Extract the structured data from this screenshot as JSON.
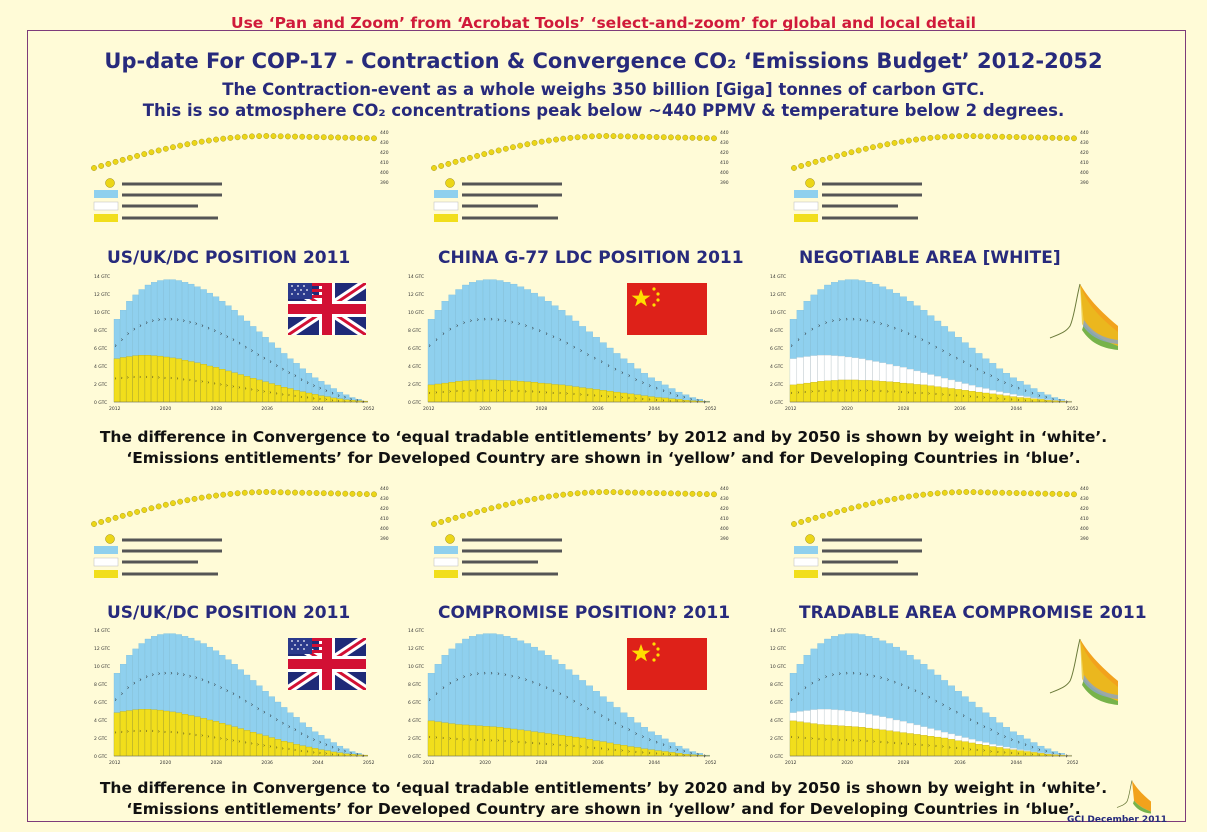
{
  "header": {
    "hint": "Use ‘Pan and Zoom’ from ‘Acrobat Tools’ ‘select-and-zoom’ for global and local detail",
    "title": "Up-date For COP-17 - Contraction & Convergence CO₂ ‘Emissions Budget’ 2012-2052",
    "subtitle_1": "The Contraction-event as a whole weighs 350 billion [Giga] tonnes of carbon GTC.",
    "subtitle_2": "This is so atmosphere CO₂ concentrations peak below ~440 PPMV & temperature below 2 degrees."
  },
  "captions": {
    "row1_line1": "The difference in Convergence to ‘equal tradable entitlements’ by 2012 and by 2050 is shown by weight in ‘white’.",
    "row1_line2": "‘Emissions entitlements’ for Developed Country are shown in ‘yellow’ and for Developing Countries in ‘blue’.",
    "row2_line1": "The difference in Convergence to ‘equal tradable entitlements’ by 2020 and by 2050 is shown by weight in ‘white’.",
    "row2_line2": "‘Emissions entitlements’ for Developed Country are shown in ‘yellow’ and for Developing Countries in ‘blue’."
  },
  "credit": "GCI December 2011",
  "colors": {
    "background": "#fffbd7",
    "blue": "#8fd0ee",
    "yellow": "#f1de1c",
    "white": "#ffffff",
    "title_navy": "#272a7c",
    "hint_red": "#d01a3a",
    "dot_yellow": "#ecd617"
  },
  "concentration_axis_ticks": [
    "440",
    "430",
    "420",
    "410",
    "400",
    "390"
  ],
  "icons": {
    "flag_1": "us-uk-flag-icon",
    "flag_2": "china-flag-icon",
    "inset": "contraction-convergence-graph-icon"
  },
  "chart_data": [
    {
      "type": "bar",
      "title": "US/UK/DC POSITION 2011",
      "x_ticks": [
        "2012",
        "2020",
        "2028",
        "2036",
        "2044",
        "2052"
      ],
      "y_ticks": [
        "14 GTC",
        "12 GTC",
        "10 GTC",
        "8 GTC",
        "6 GTC",
        "4 GTC",
        "2 GTC",
        "0 GTC"
      ],
      "ylim": [
        0,
        14
      ],
      "series": [
        {
          "values": [
            4.8,
            4.95,
            5.05,
            5.15,
            5.2,
            5.2,
            5.15,
            5.1,
            5.0,
            4.9,
            4.8,
            4.65,
            4.5,
            4.35,
            4.2,
            4.0,
            3.85,
            3.65,
            3.45,
            3.25,
            3.05,
            2.85,
            2.65,
            2.45,
            2.25,
            2.05,
            1.85,
            1.65,
            1.5,
            1.3,
            1.15,
            1.0,
            0.85,
            0.7,
            0.6,
            0.45,
            0.35,
            0.25,
            0.2,
            0.15,
            0.1
          ]
        },
        {
          "values": [
            9.2,
            10.2,
            11.2,
            11.9,
            12.5,
            13.0,
            13.3,
            13.5,
            13.6,
            13.6,
            13.5,
            13.3,
            13.1,
            12.8,
            12.5,
            12.1,
            11.7,
            11.2,
            10.7,
            10.2,
            9.6,
            9.0,
            8.4,
            7.8,
            7.2,
            6.6,
            6.0,
            5.4,
            4.8,
            4.3,
            3.7,
            3.2,
            2.7,
            2.3,
            1.9,
            1.5,
            1.1,
            0.8,
            0.5,
            0.3,
            0.1
          ]
        }
      ]
    },
    {
      "type": "bar",
      "title": "CHINA G-77 LDC POSITION 2011",
      "x_ticks": [
        "2012",
        "2020",
        "2028",
        "2036",
        "2044",
        "2052"
      ],
      "y_ticks": [
        "14 GTC",
        "12 GTC",
        "10 GTC",
        "8 GTC",
        "6 GTC",
        "4 GTC",
        "2 GTC",
        "0 GTC"
      ],
      "ylim": [
        0,
        14
      ],
      "series": [
        {
          "values": [
            1.9,
            2.0,
            2.1,
            2.2,
            2.3,
            2.35,
            2.4,
            2.45,
            2.45,
            2.45,
            2.4,
            2.4,
            2.35,
            2.3,
            2.25,
            2.2,
            2.1,
            2.05,
            1.95,
            1.9,
            1.8,
            1.7,
            1.6,
            1.5,
            1.4,
            1.3,
            1.2,
            1.1,
            1.0,
            0.9,
            0.8,
            0.7,
            0.6,
            0.5,
            0.45,
            0.35,
            0.3,
            0.2,
            0.15,
            0.1,
            0.05
          ]
        },
        {
          "values": [
            9.2,
            10.2,
            11.2,
            11.9,
            12.5,
            13.0,
            13.3,
            13.5,
            13.6,
            13.6,
            13.5,
            13.3,
            13.1,
            12.8,
            12.5,
            12.1,
            11.7,
            11.2,
            10.7,
            10.2,
            9.6,
            9.0,
            8.4,
            7.8,
            7.2,
            6.6,
            6.0,
            5.4,
            4.8,
            4.3,
            3.7,
            3.2,
            2.7,
            2.3,
            1.9,
            1.5,
            1.1,
            0.8,
            0.5,
            0.3,
            0.1
          ]
        }
      ]
    },
    {
      "type": "bar",
      "title": "NEGOTIABLE AREA [WHITE]",
      "x_ticks": [
        "2012",
        "2020",
        "2028",
        "2036",
        "2044",
        "2052"
      ],
      "y_ticks": [
        "14 GTC",
        "12 GTC",
        "10 GTC",
        "8 GTC",
        "6 GTC",
        "4 GTC",
        "2 GTC",
        "0 GTC"
      ],
      "ylim": [
        0,
        14
      ],
      "series": [
        {
          "values": [
            1.9,
            2.0,
            2.1,
            2.2,
            2.3,
            2.35,
            2.4,
            2.45,
            2.45,
            2.45,
            2.4,
            2.4,
            2.35,
            2.3,
            2.25,
            2.2,
            2.1,
            2.05,
            1.95,
            1.9,
            1.8,
            1.7,
            1.6,
            1.5,
            1.4,
            1.3,
            1.2,
            1.1,
            1.0,
            0.9,
            0.8,
            0.7,
            0.6,
            0.5,
            0.45,
            0.35,
            0.3,
            0.2,
            0.15,
            0.1,
            0.05
          ]
        },
        {
          "values": [
            4.8,
            4.95,
            5.05,
            5.15,
            5.2,
            5.2,
            5.15,
            5.1,
            5.0,
            4.9,
            4.8,
            4.65,
            4.5,
            4.35,
            4.2,
            4.0,
            3.85,
            3.65,
            3.45,
            3.25,
            3.05,
            2.85,
            2.65,
            2.45,
            2.25,
            2.05,
            1.85,
            1.65,
            1.5,
            1.3,
            1.15,
            1.0,
            0.85,
            0.7,
            0.6,
            0.45,
            0.35,
            0.25,
            0.2,
            0.15,
            0.1
          ]
        },
        {
          "values": [
            9.2,
            10.2,
            11.2,
            11.9,
            12.5,
            13.0,
            13.3,
            13.5,
            13.6,
            13.6,
            13.5,
            13.3,
            13.1,
            12.8,
            12.5,
            12.1,
            11.7,
            11.2,
            10.7,
            10.2,
            9.6,
            9.0,
            8.4,
            7.8,
            7.2,
            6.6,
            6.0,
            5.4,
            4.8,
            4.3,
            3.7,
            3.2,
            2.7,
            2.3,
            1.9,
            1.5,
            1.1,
            0.8,
            0.5,
            0.3,
            0.1
          ]
        }
      ]
    },
    {
      "type": "bar",
      "title": "US/UK/DC POSITION 2011",
      "x_ticks": [
        "2012",
        "2020",
        "2028",
        "2036",
        "2044",
        "2052"
      ],
      "y_ticks": [
        "14 GTC",
        "12 GTC",
        "10 GTC",
        "8 GTC",
        "6 GTC",
        "4 GTC",
        "2 GTC",
        "0 GTC"
      ],
      "ylim": [
        0,
        14
      ],
      "series": [
        {
          "values": [
            4.8,
            4.95,
            5.05,
            5.15,
            5.2,
            5.2,
            5.15,
            5.1,
            5.0,
            4.9,
            4.8,
            4.65,
            4.5,
            4.35,
            4.2,
            4.0,
            3.85,
            3.65,
            3.45,
            3.25,
            3.05,
            2.85,
            2.65,
            2.45,
            2.25,
            2.05,
            1.85,
            1.65,
            1.5,
            1.3,
            1.15,
            1.0,
            0.85,
            0.7,
            0.6,
            0.45,
            0.35,
            0.25,
            0.2,
            0.15,
            0.1
          ]
        },
        {
          "values": [
            9.2,
            10.2,
            11.2,
            11.9,
            12.5,
            13.0,
            13.3,
            13.5,
            13.6,
            13.6,
            13.5,
            13.3,
            13.1,
            12.8,
            12.5,
            12.1,
            11.7,
            11.2,
            10.7,
            10.2,
            9.6,
            9.0,
            8.4,
            7.8,
            7.2,
            6.6,
            6.0,
            5.4,
            4.8,
            4.3,
            3.7,
            3.2,
            2.7,
            2.3,
            1.9,
            1.5,
            1.1,
            0.8,
            0.5,
            0.3,
            0.1
          ]
        }
      ]
    },
    {
      "type": "bar",
      "title": "COMPROMISE POSITION? 2011",
      "x_ticks": [
        "2012",
        "2020",
        "2028",
        "2036",
        "2044",
        "2052"
      ],
      "y_ticks": [
        "14 GTC",
        "12 GTC",
        "10 GTC",
        "8 GTC",
        "6 GTC",
        "4 GTC",
        "2 GTC",
        "0 GTC"
      ],
      "ylim": [
        0,
        14
      ],
      "series": [
        {
          "values": [
            3.9,
            3.8,
            3.7,
            3.6,
            3.5,
            3.45,
            3.4,
            3.35,
            3.3,
            3.25,
            3.2,
            3.1,
            3.0,
            2.9,
            2.8,
            2.7,
            2.6,
            2.5,
            2.4,
            2.3,
            2.2,
            2.1,
            2.0,
            1.85,
            1.7,
            1.6,
            1.45,
            1.3,
            1.2,
            1.05,
            0.95,
            0.8,
            0.7,
            0.6,
            0.5,
            0.4,
            0.3,
            0.2,
            0.15,
            0.1,
            0.05
          ]
        },
        {
          "values": [
            9.2,
            10.2,
            11.2,
            11.9,
            12.5,
            13.0,
            13.3,
            13.5,
            13.6,
            13.6,
            13.5,
            13.3,
            13.1,
            12.8,
            12.5,
            12.1,
            11.7,
            11.2,
            10.7,
            10.2,
            9.6,
            9.0,
            8.4,
            7.8,
            7.2,
            6.6,
            6.0,
            5.4,
            4.8,
            4.3,
            3.7,
            3.2,
            2.7,
            2.3,
            1.9,
            1.5,
            1.1,
            0.8,
            0.5,
            0.3,
            0.1
          ]
        }
      ]
    },
    {
      "type": "bar",
      "title": "TRADABLE AREA COMPROMISE 2011",
      "x_ticks": [
        "2012",
        "2020",
        "2028",
        "2036",
        "2044",
        "2052"
      ],
      "y_ticks": [
        "14 GTC",
        "12 GTC",
        "10 GTC",
        "8 GTC",
        "6 GTC",
        "4 GTC",
        "2 GTC",
        "0 GTC"
      ],
      "ylim": [
        0,
        14
      ],
      "series": [
        {
          "values": [
            3.9,
            3.8,
            3.7,
            3.6,
            3.5,
            3.45,
            3.4,
            3.35,
            3.3,
            3.25,
            3.2,
            3.1,
            3.0,
            2.9,
            2.8,
            2.7,
            2.6,
            2.5,
            2.4,
            2.3,
            2.2,
            2.1,
            2.0,
            1.85,
            1.7,
            1.6,
            1.45,
            1.3,
            1.2,
            1.05,
            0.95,
            0.8,
            0.7,
            0.6,
            0.5,
            0.4,
            0.3,
            0.2,
            0.15,
            0.1,
            0.05
          ]
        },
        {
          "values": [
            4.8,
            4.95,
            5.05,
            5.15,
            5.2,
            5.2,
            5.15,
            5.1,
            5.0,
            4.9,
            4.8,
            4.65,
            4.5,
            4.35,
            4.2,
            4.0,
            3.85,
            3.65,
            3.45,
            3.25,
            3.05,
            2.85,
            2.65,
            2.45,
            2.25,
            2.05,
            1.85,
            1.65,
            1.5,
            1.3,
            1.15,
            1.0,
            0.85,
            0.7,
            0.6,
            0.45,
            0.35,
            0.25,
            0.2,
            0.15,
            0.1
          ]
        },
        {
          "values": [
            9.2,
            10.2,
            11.2,
            11.9,
            12.5,
            13.0,
            13.3,
            13.5,
            13.6,
            13.6,
            13.5,
            13.3,
            13.1,
            12.8,
            12.5,
            12.1,
            11.7,
            11.2,
            10.7,
            10.2,
            9.6,
            9.0,
            8.4,
            7.8,
            7.2,
            6.6,
            6.0,
            5.4,
            4.8,
            4.3,
            3.7,
            3.2,
            2.7,
            2.3,
            1.9,
            1.5,
            1.1,
            0.8,
            0.5,
            0.3,
            0.1
          ]
        }
      ]
    }
  ]
}
